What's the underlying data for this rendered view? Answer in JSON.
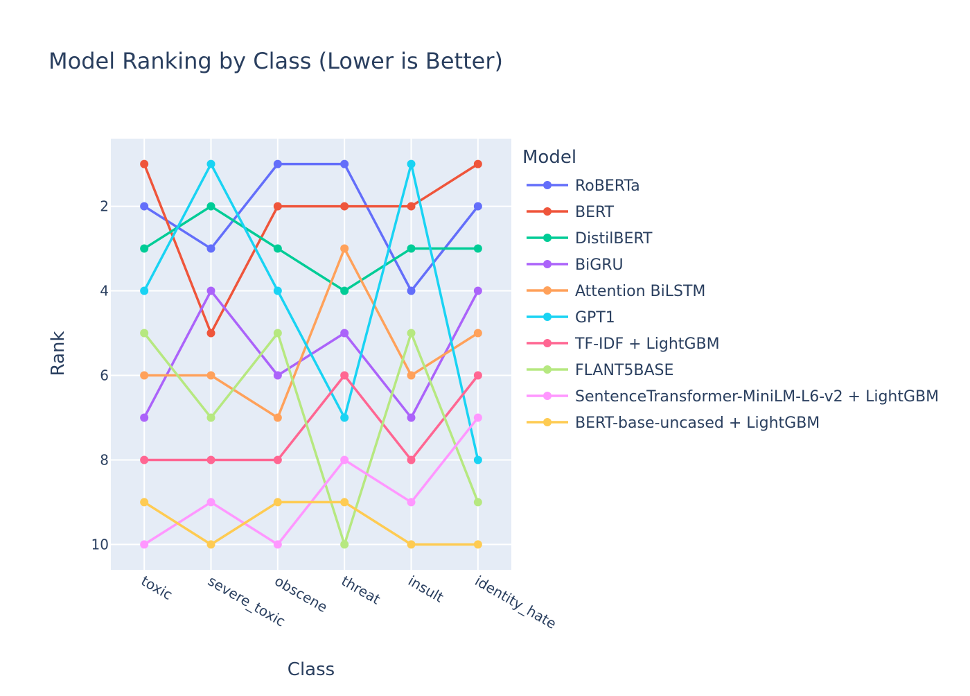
{
  "chart_data": {
    "type": "line",
    "title": "Model Ranking by Class (Lower is Better)",
    "xlabel": "Class",
    "ylabel": "Rank",
    "categories": [
      "toxic",
      "severe_toxic",
      "obscene",
      "threat",
      "insult",
      "identity_hate"
    ],
    "y_ticks": [
      2,
      4,
      6,
      8,
      10
    ],
    "ylim": [
      10.6,
      0.4
    ],
    "y_reversed": true,
    "grid": true,
    "legend_title": "Model",
    "legend_position": "right",
    "series": [
      {
        "name": "RoBERTa",
        "color": "#636efa",
        "values": [
          2,
          3,
          1,
          1,
          4,
          2
        ]
      },
      {
        "name": "BERT",
        "color": "#EF553B",
        "values": [
          1,
          5,
          2,
          2,
          2,
          1
        ]
      },
      {
        "name": "DistilBERT",
        "color": "#00cc96",
        "values": [
          3,
          2,
          3,
          4,
          3,
          3
        ]
      },
      {
        "name": "BiGRU",
        "color": "#ab63fa",
        "values": [
          7,
          4,
          6,
          5,
          7,
          4
        ]
      },
      {
        "name": "Attention BiLSTM",
        "color": "#FFA15A",
        "values": [
          6,
          6,
          7,
          3,
          6,
          5
        ]
      },
      {
        "name": "GPT1",
        "color": "#19d3f3",
        "values": [
          4,
          1,
          4,
          7,
          1,
          8
        ]
      },
      {
        "name": "TF-IDF + LightGBM",
        "color": "#FF6692",
        "values": [
          8,
          8,
          8,
          6,
          8,
          6
        ]
      },
      {
        "name": "FLANT5BASE",
        "color": "#B6E880",
        "values": [
          5,
          7,
          5,
          10,
          5,
          9
        ]
      },
      {
        "name": "SentenceTransformer-MiniLM-L6-v2 + LightGBM",
        "color": "#FF97FF",
        "values": [
          10,
          9,
          10,
          8,
          9,
          7
        ]
      },
      {
        "name": "BERT-base-uncased + LightGBM",
        "color": "#FECB52",
        "values": [
          9,
          10,
          9,
          9,
          10,
          10
        ]
      }
    ]
  }
}
